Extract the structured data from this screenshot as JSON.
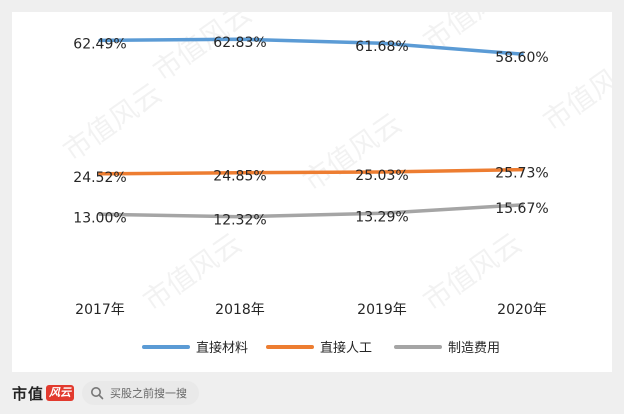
{
  "chart_data": {
    "type": "line",
    "categories": [
      "2017年",
      "2018年",
      "2019年",
      "2020年"
    ],
    "series": [
      {
        "name": "直接材料",
        "values": [
          62.49,
          62.83,
          61.68,
          58.6
        ],
        "labels": [
          "62.49%",
          "62.83%",
          "61.68%",
          "58.60%"
        ],
        "color": "#5b9bd5"
      },
      {
        "name": "直接人工",
        "values": [
          24.52,
          24.85,
          25.03,
          25.73
        ],
        "labels": [
          "24.52%",
          "24.85%",
          "25.03%",
          "25.73%"
        ],
        "color": "#ed7d31"
      },
      {
        "name": "制造费用",
        "values": [
          13.0,
          12.32,
          13.29,
          15.67
        ],
        "labels": [
          "13.00%",
          "12.32%",
          "13.29%",
          "15.67%"
        ],
        "color": "#a5a5a5"
      }
    ],
    "ylim": [
      0,
      70
    ],
    "grid": false,
    "legend_position": "bottom"
  },
  "footer": {
    "brand_text": "市值",
    "brand_badge": "风云",
    "search_icon": "search-icon",
    "search_text": "买股之前搜一搜"
  },
  "watermark": {
    "text": "市值风云"
  }
}
